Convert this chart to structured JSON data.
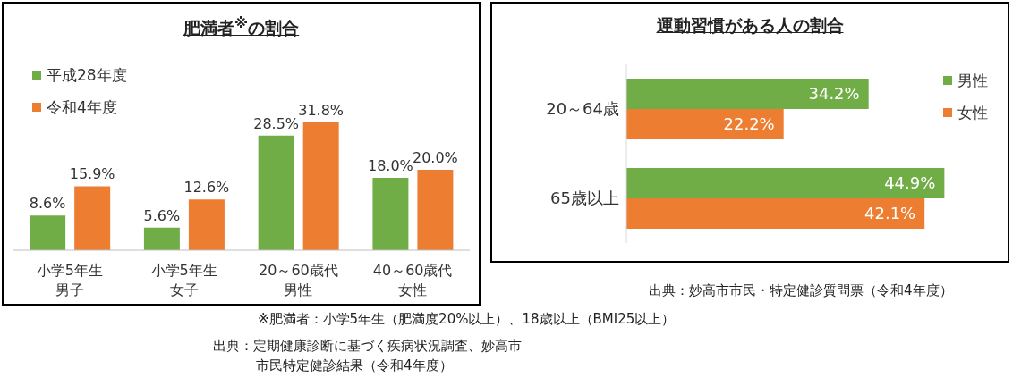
{
  "chart_data": [
    {
      "type": "bar",
      "title": "肥満者$^{※}$の割合",
      "categories": [
        "小学5年生男子",
        "小学5年生女子",
        "20～60歳代男性",
        "40～60歳代女性"
      ],
      "series": [
        {
          "name": "平成28年度",
          "color": "#70ad47",
          "values": [
            8.6,
            5.6,
            28.5,
            18.0
          ],
          "value_labels": [
            "8.6%",
            "5.6%",
            "28.5%",
            "18.0%"
          ]
        },
        {
          "name": "令和4年度",
          "color": "#ed7d31",
          "values": [
            15.9,
            12.6,
            31.8,
            20.0
          ],
          "value_labels": [
            "15.9%",
            "12.6%",
            "31.8%",
            "20.0%"
          ]
        }
      ],
      "legend": "top left",
      "annotations": [
        "※肥満者：小学5年生（肥満度20%以上）、18歳以上（BMI25以上）",
        "出典：定期健康診断に基づく疾病状況調査、妙高市市民特定健診結果（令和4年度）"
      ]
    },
    {
      "type": "bar",
      "orientation": "horizontal",
      "title": "運動習慣がある人の割合",
      "categories": [
        "20～64歳",
        "65歳以上"
      ],
      "series": [
        {
          "name": "男性",
          "color": "#70ad47",
          "values": [
            34.2,
            44.9
          ],
          "value_labels": [
            "34.2%",
            "44.9%"
          ]
        },
        {
          "name": "女性",
          "color": "#ed7d31",
          "values": [
            22.2,
            42.1
          ],
          "value_labels": [
            "22.2%",
            "42.1%"
          ]
        }
      ],
      "legend": "right",
      "annotations": [
        "出典：妙高市市民・特定健診質問票（令和4年度）"
      ]
    }
  ]
}
